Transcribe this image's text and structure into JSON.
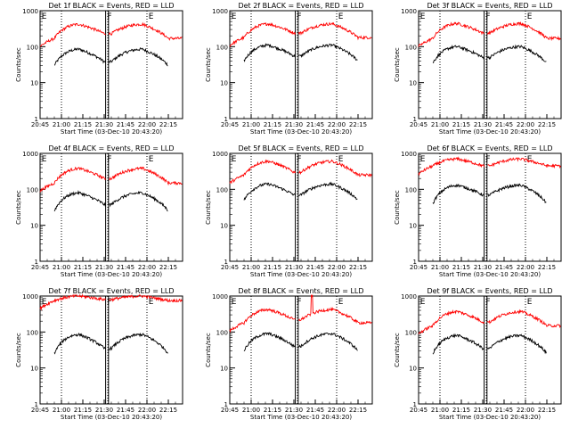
{
  "chart_data": {
    "type": "line",
    "layout": "3x3 grid",
    "shared": {
      "xlabel": "Start Time (03-Dec-10 20:43:20)",
      "ylabel": "Counts/sec",
      "x_tick_labels": [
        "20:45",
        "21:00",
        "21:15",
        "21:30",
        "21:45",
        "22:00",
        "22:15"
      ],
      "x_tick_minutes": [
        0,
        15,
        30,
        45,
        60,
        75,
        90
      ],
      "xlim_minutes": [
        0,
        100
      ],
      "yscale": "log",
      "y_tick_labels": [
        "1",
        "10",
        "100",
        "1000"
      ],
      "ylim": [
        1,
        1000
      ],
      "vertical_dotted_lines_minutes": [
        15,
        47.5,
        75
      ],
      "vertical_solid_lines_minutes": [
        46,
        48
      ],
      "flag_labels": [
        "E",
        "F",
        "E"
      ],
      "flag_minutes": [
        0.5,
        46.5,
        75.5
      ],
      "grid": false,
      "colors": {
        "events": "#000000",
        "lld": "#ff0000"
      }
    },
    "panels": [
      {
        "title": "Det 1f  BLACK = Events, RED = LLD",
        "series": [
          {
            "name": "Events",
            "color": "#000000",
            "base": 30,
            "peak": 85,
            "dip": 38
          },
          {
            "name": "LLD",
            "color": "#ff0000",
            "base": 170,
            "peak": 420,
            "dip": 230
          }
        ]
      },
      {
        "title": "Det 2f  BLACK = Events, RED = LLD",
        "series": [
          {
            "name": "Events",
            "color": "#000000",
            "base": 40,
            "peak": 110,
            "dip": 55
          },
          {
            "name": "LLD",
            "color": "#ff0000",
            "base": 180,
            "peak": 430,
            "dip": 240
          }
        ]
      },
      {
        "title": "Det 3f  BLACK = Events, RED = LLD",
        "series": [
          {
            "name": "Events",
            "color": "#000000",
            "base": 35,
            "peak": 100,
            "dip": 50
          },
          {
            "name": "LLD",
            "color": "#ff0000",
            "base": 170,
            "peak": 440,
            "dip": 240
          }
        ]
      },
      {
        "title": "Det 4f  BLACK = Events, RED = LLD",
        "series": [
          {
            "name": "Events",
            "color": "#000000",
            "base": 25,
            "peak": 80,
            "dip": 38
          },
          {
            "name": "LLD",
            "color": "#ff0000",
            "base": 150,
            "peak": 380,
            "dip": 200
          }
        ]
      },
      {
        "title": "Det 5f  BLACK = Events, RED = LLD",
        "series": [
          {
            "name": "Events",
            "color": "#000000",
            "base": 50,
            "peak": 140,
            "dip": 70
          },
          {
            "name": "LLD",
            "color": "#ff0000",
            "base": 250,
            "peak": 600,
            "dip": 300
          }
        ]
      },
      {
        "title": "Det 6f  BLACK = Events, RED = LLD",
        "series": [
          {
            "name": "Events",
            "color": "#000000",
            "base": 40,
            "peak": 130,
            "dip": 70
          },
          {
            "name": "LLD",
            "color": "#ff0000",
            "base": 450,
            "peak": 700,
            "dip": 450
          }
        ]
      },
      {
        "title": "Det 7f  BLACK = Events, RED = LLD",
        "series": [
          {
            "name": "Events",
            "color": "#000000",
            "base": 25,
            "peak": 85,
            "dip": 35
          },
          {
            "name": "LLD",
            "color": "#ff0000",
            "base": 750,
            "peak": 1000,
            "dip": 800
          }
        ]
      },
      {
        "title": "Det 8f  BLACK = Events, RED = LLD",
        "series": [
          {
            "name": "Events",
            "color": "#000000",
            "base": 30,
            "peak": 90,
            "dip": 40
          },
          {
            "name": "LLD",
            "color": "#ff0000",
            "base": 180,
            "peak": 420,
            "dip": 220,
            "spike_minutes": [
              57,
              58
            ],
            "spike_value": 1000
          }
        ]
      },
      {
        "title": "Det 9f  BLACK = Events, RED = LLD",
        "series": [
          {
            "name": "Events",
            "color": "#000000",
            "base": 25,
            "peak": 80,
            "dip": 35
          },
          {
            "name": "LLD",
            "color": "#ff0000",
            "base": 150,
            "peak": 370,
            "dip": 190
          }
        ]
      }
    ]
  }
}
